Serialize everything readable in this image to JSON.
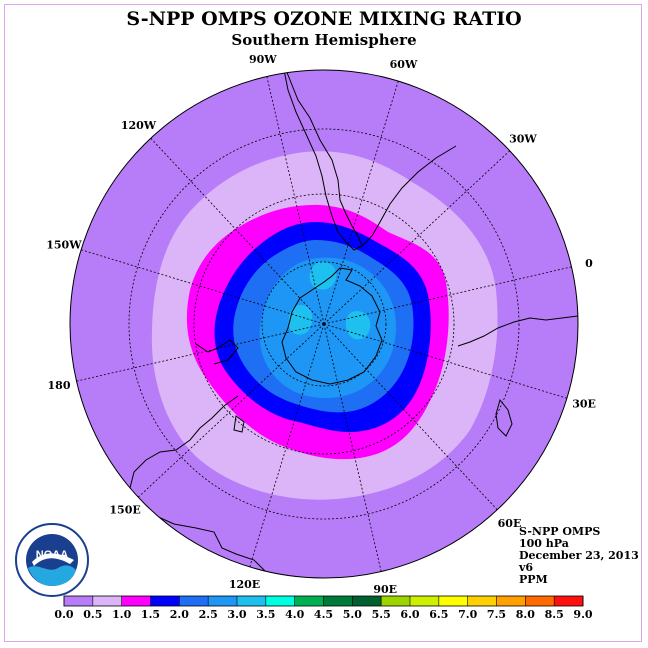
{
  "title": "S-NPP OMPS OZONE MIXING RATIO",
  "subtitle": "Southern Hemisphere",
  "longitude_labels": [
    "90W",
    "60W",
    "30W",
    "0",
    "30E",
    "60E",
    "90E",
    "120E",
    "150E",
    "180",
    "150W",
    "120W"
  ],
  "info": {
    "product": "S-NPP OMPS",
    "level": "100 hPa",
    "date": "December 23, 2013",
    "version": "v6",
    "units": "PPM"
  },
  "logo": {
    "text": "NOAA",
    "icon": "noaa-logo-icon"
  },
  "colorbar": {
    "ticks": [
      "0.0",
      "0.5",
      "1.0",
      "1.5",
      "2.0",
      "2.5",
      "3.0",
      "3.5",
      "4.0",
      "4.5",
      "5.0",
      "5.5",
      "6.0",
      "6.5",
      "7.0",
      "7.5",
      "8.0",
      "8.5",
      "9.0"
    ],
    "colors": [
      "#b77cf7",
      "#dcb4f8",
      "#ff00ff",
      "#0000ff",
      "#1f6ff5",
      "#1e96f5",
      "#1ec0f0",
      "#00ffe0",
      "#00b050",
      "#007a38",
      "#006030",
      "#9cd400",
      "#ccf000",
      "#ffff00",
      "#ffd000",
      "#ff9f00",
      "#ff6a00",
      "#ff1010",
      "#e00000",
      "#7a4a26"
    ]
  },
  "chart_data": {
    "type": "polar-map",
    "projection": "south-polar-stereographic",
    "variable": "ozone mixing ratio",
    "units": "PPM",
    "pressure_level": "100 hPa",
    "contour_levels": [
      0.0,
      0.5,
      1.0,
      1.5,
      2.0,
      2.5,
      3.0,
      3.5,
      4.0,
      4.5,
      5.0,
      5.5,
      6.0,
      6.5,
      7.0,
      7.5,
      8.0,
      8.5,
      9.0
    ],
    "regions": [
      {
        "range": "0.0-0.5",
        "extent": "outer mid-latitudes",
        "color": "#b77cf7"
      },
      {
        "range": "0.5-1.0",
        "extent": "ring around polar vortex",
        "color": "#dcb4f8"
      },
      {
        "range": "1.0-1.5",
        "extent": "vortex edge",
        "color": "#ff00ff"
      },
      {
        "range": "1.5-2.0",
        "extent": "inner vortex edge",
        "color": "#0000ff"
      },
      {
        "range": "2.0-2.5",
        "extent": "polar region",
        "color": "#1f6ff5"
      },
      {
        "range": "2.5-3.0",
        "extent": "over Antarctica",
        "color": "#1e96f5"
      },
      {
        "range": "3.0-3.5",
        "extent": "small patches over Antarctica",
        "color": "#1ec0f0"
      }
    ]
  }
}
